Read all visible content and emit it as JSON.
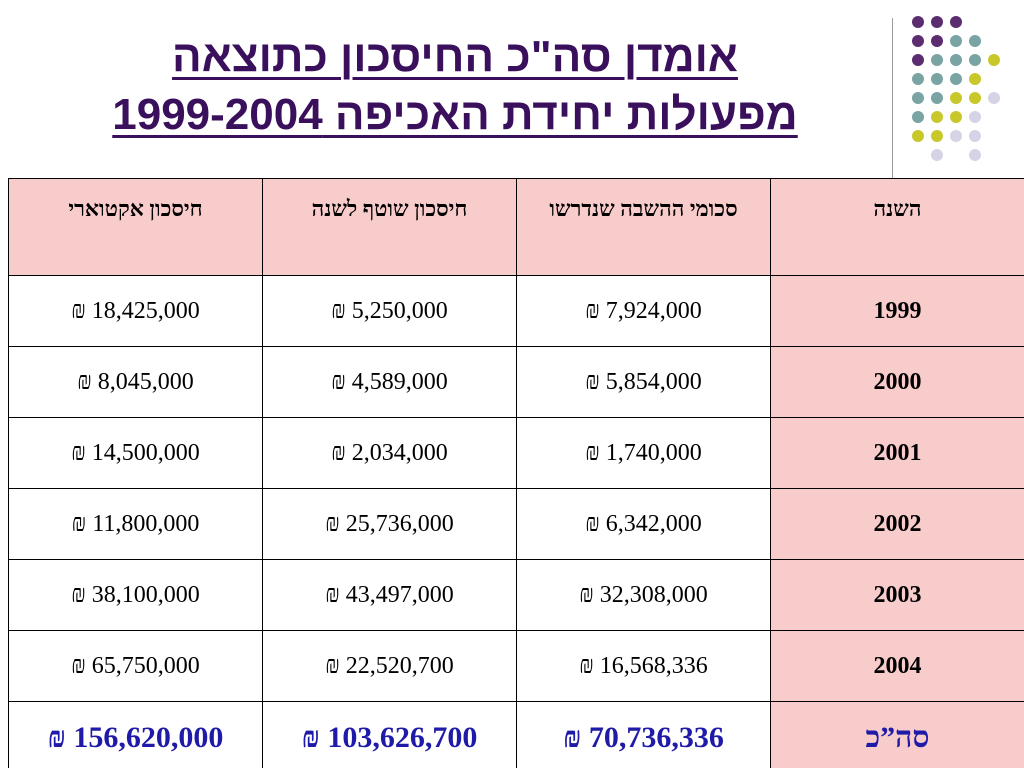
{
  "title": {
    "line1": "אומדן סה\"כ החיסכון כתוצאה",
    "line2": "מפעולות יחידת האכיפה 1999-2004"
  },
  "colors": {
    "title": "#3a0f5c",
    "header_bg": "#f9cccc",
    "total_text": "#1f1aa8",
    "dot_purple": "#5b2c6f",
    "dot_teal": "#7aa3a3",
    "dot_yellow": "#c8c82a",
    "dot_lavender": "#d6d3e6"
  },
  "table": {
    "headers": {
      "year": "השנה",
      "refund": "סכומי ההשבה שנדרשו",
      "current": "חיסכון שוטף לשנה",
      "actuarial": "חיסכון אקטוארי"
    },
    "rows": [
      {
        "year": "1999",
        "refund": "7,924,000 ₪",
        "current": "5,250,000 ₪",
        "actuarial": "18,425,000 ₪"
      },
      {
        "year": "2000",
        "refund": "5,854,000 ₪",
        "current": "4,589,000 ₪",
        "actuarial": "8,045,000 ₪"
      },
      {
        "year": "2001",
        "refund": "1,740,000 ₪",
        "current": "2,034,000 ₪",
        "actuarial": "14,500,000 ₪"
      },
      {
        "year": "2002",
        "refund": "6,342,000 ₪",
        "current": "25,736,000 ₪",
        "actuarial": "11,800,000 ₪"
      },
      {
        "year": "2003",
        "refund": "32,308,000 ₪",
        "current": "43,497,000 ₪",
        "actuarial": "38,100,000 ₪"
      },
      {
        "year": "2004",
        "refund": "16,568,336 ₪",
        "current": "22,520,700 ₪",
        "actuarial": "65,750,000 ₪"
      }
    ],
    "total": {
      "label": "סה”כ",
      "refund": "70,736,336 ₪",
      "current": "103,626,700 ₪",
      "actuarial": "156,620,000 ₪"
    }
  }
}
